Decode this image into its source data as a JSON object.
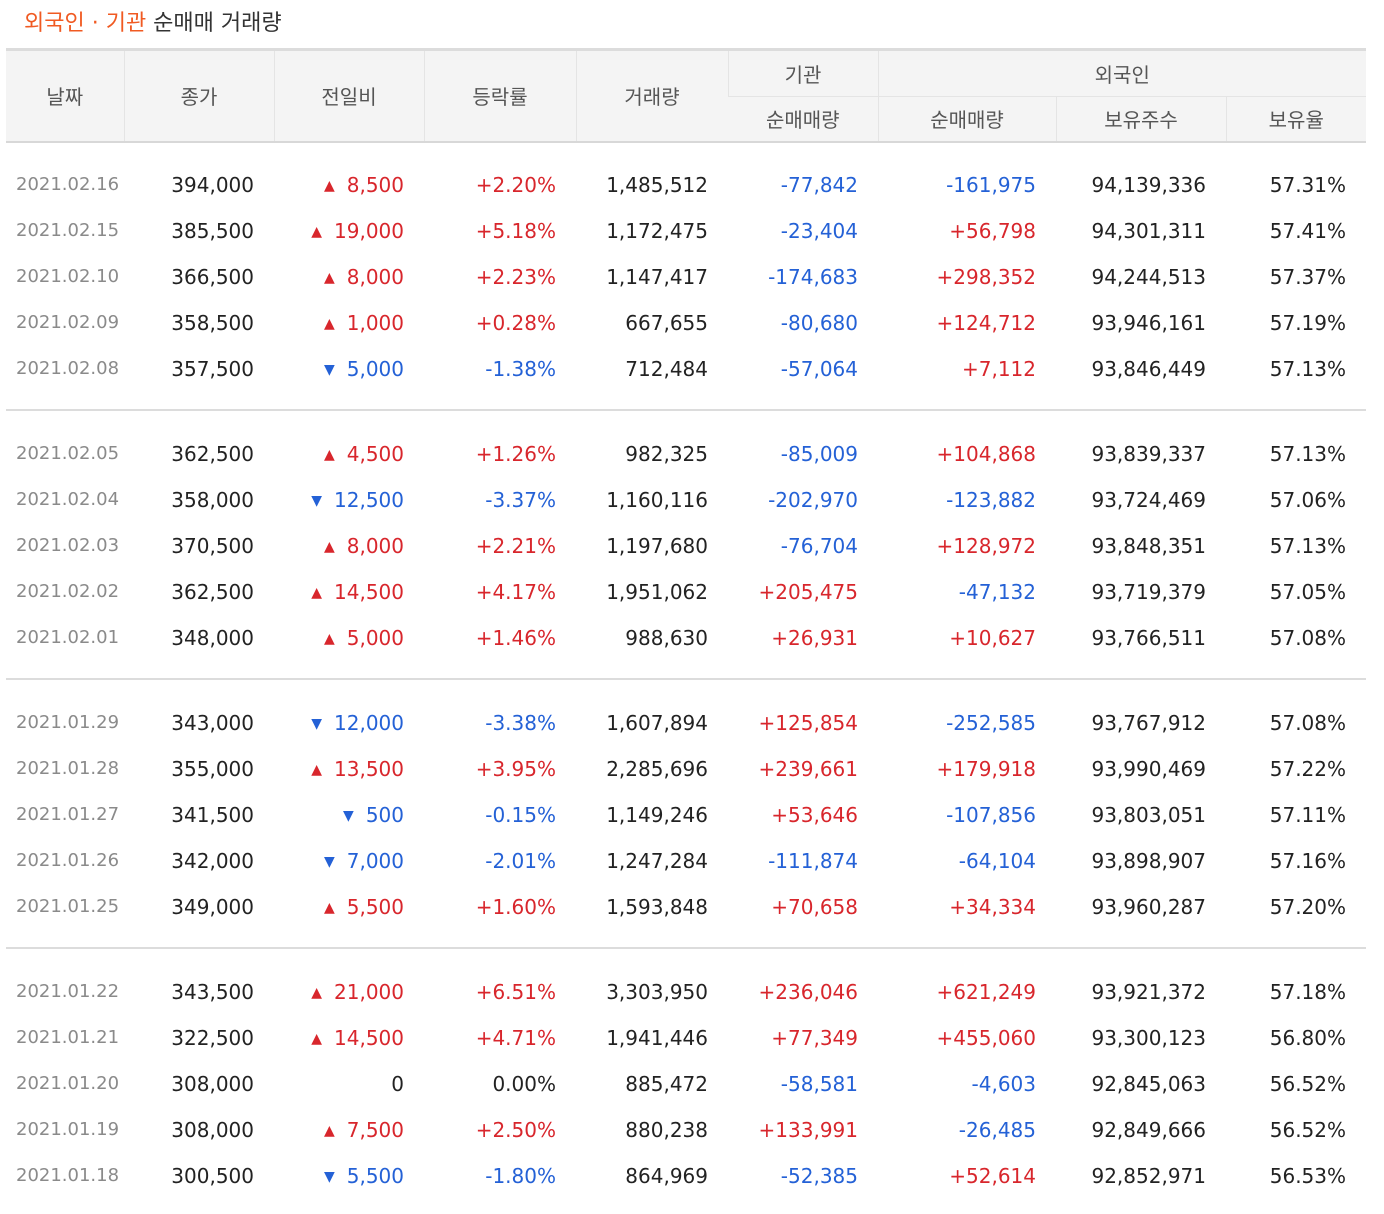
{
  "title": {
    "accent": "외국인 · 기관",
    "rest": " 순매매 거래량"
  },
  "headers": {
    "date": "날짜",
    "close": "종가",
    "change": "전일비",
    "rate": "등락률",
    "volume": "거래량",
    "inst_group": "기관",
    "inst_net": "순매매량",
    "foreign_group": "외국인",
    "foreign_net": "순매매량",
    "foreign_shares": "보유주수",
    "foreign_ratio": "보유율"
  },
  "colors": {
    "accent": "#f05a22",
    "up": "#d8262c",
    "down": "#2461d6"
  },
  "icons": {
    "up": "▲",
    "down": "▼"
  },
  "groups": [
    [
      {
        "date": "2021.02.16",
        "close": "394,000",
        "dir": "up",
        "change": "8,500",
        "rate": "+2.20%",
        "volume": "1,485,512",
        "inst": "-77,842",
        "foreign": "-161,975",
        "shares": "94,139,336",
        "ratio": "57.31%"
      },
      {
        "date": "2021.02.15",
        "close": "385,500",
        "dir": "up",
        "change": "19,000",
        "rate": "+5.18%",
        "volume": "1,172,475",
        "inst": "-23,404",
        "foreign": "+56,798",
        "shares": "94,301,311",
        "ratio": "57.41%"
      },
      {
        "date": "2021.02.10",
        "close": "366,500",
        "dir": "up",
        "change": "8,000",
        "rate": "+2.23%",
        "volume": "1,147,417",
        "inst": "-174,683",
        "foreign": "+298,352",
        "shares": "94,244,513",
        "ratio": "57.37%"
      },
      {
        "date": "2021.02.09",
        "close": "358,500",
        "dir": "up",
        "change": "1,000",
        "rate": "+0.28%",
        "volume": "667,655",
        "inst": "-80,680",
        "foreign": "+124,712",
        "shares": "93,946,161",
        "ratio": "57.19%"
      },
      {
        "date": "2021.02.08",
        "close": "357,500",
        "dir": "down",
        "change": "5,000",
        "rate": "-1.38%",
        "volume": "712,484",
        "inst": "-57,064",
        "foreign": "+7,112",
        "shares": "93,846,449",
        "ratio": "57.13%"
      }
    ],
    [
      {
        "date": "2021.02.05",
        "close": "362,500",
        "dir": "up",
        "change": "4,500",
        "rate": "+1.26%",
        "volume": "982,325",
        "inst": "-85,009",
        "foreign": "+104,868",
        "shares": "93,839,337",
        "ratio": "57.13%"
      },
      {
        "date": "2021.02.04",
        "close": "358,000",
        "dir": "down",
        "change": "12,500",
        "rate": "-3.37%",
        "volume": "1,160,116",
        "inst": "-202,970",
        "foreign": "-123,882",
        "shares": "93,724,469",
        "ratio": "57.06%"
      },
      {
        "date": "2021.02.03",
        "close": "370,500",
        "dir": "up",
        "change": "8,000",
        "rate": "+2.21%",
        "volume": "1,197,680",
        "inst": "-76,704",
        "foreign": "+128,972",
        "shares": "93,848,351",
        "ratio": "57.13%"
      },
      {
        "date": "2021.02.02",
        "close": "362,500",
        "dir": "up",
        "change": "14,500",
        "rate": "+4.17%",
        "volume": "1,951,062",
        "inst": "+205,475",
        "foreign": "-47,132",
        "shares": "93,719,379",
        "ratio": "57.05%"
      },
      {
        "date": "2021.02.01",
        "close": "348,000",
        "dir": "up",
        "change": "5,000",
        "rate": "+1.46%",
        "volume": "988,630",
        "inst": "+26,931",
        "foreign": "+10,627",
        "shares": "93,766,511",
        "ratio": "57.08%"
      }
    ],
    [
      {
        "date": "2021.01.29",
        "close": "343,000",
        "dir": "down",
        "change": "12,000",
        "rate": "-3.38%",
        "volume": "1,607,894",
        "inst": "+125,854",
        "foreign": "-252,585",
        "shares": "93,767,912",
        "ratio": "57.08%"
      },
      {
        "date": "2021.01.28",
        "close": "355,000",
        "dir": "up",
        "change": "13,500",
        "rate": "+3.95%",
        "volume": "2,285,696",
        "inst": "+239,661",
        "foreign": "+179,918",
        "shares": "93,990,469",
        "ratio": "57.22%"
      },
      {
        "date": "2021.01.27",
        "close": "341,500",
        "dir": "down",
        "change": "500",
        "rate": "-0.15%",
        "volume": "1,149,246",
        "inst": "+53,646",
        "foreign": "-107,856",
        "shares": "93,803,051",
        "ratio": "57.11%"
      },
      {
        "date": "2021.01.26",
        "close": "342,000",
        "dir": "down",
        "change": "7,000",
        "rate": "-2.01%",
        "volume": "1,247,284",
        "inst": "-111,874",
        "foreign": "-64,104",
        "shares": "93,898,907",
        "ratio": "57.16%"
      },
      {
        "date": "2021.01.25",
        "close": "349,000",
        "dir": "up",
        "change": "5,500",
        "rate": "+1.60%",
        "volume": "1,593,848",
        "inst": "+70,658",
        "foreign": "+34,334",
        "shares": "93,960,287",
        "ratio": "57.20%"
      }
    ],
    [
      {
        "date": "2021.01.22",
        "close": "343,500",
        "dir": "up",
        "change": "21,000",
        "rate": "+6.51%",
        "volume": "3,303,950",
        "inst": "+236,046",
        "foreign": "+621,249",
        "shares": "93,921,372",
        "ratio": "57.18%"
      },
      {
        "date": "2021.01.21",
        "close": "322,500",
        "dir": "up",
        "change": "14,500",
        "rate": "+4.71%",
        "volume": "1,941,446",
        "inst": "+77,349",
        "foreign": "+455,060",
        "shares": "93,300,123",
        "ratio": "56.80%"
      },
      {
        "date": "2021.01.20",
        "close": "308,000",
        "dir": "flat",
        "change": "0",
        "rate": "0.00%",
        "volume": "885,472",
        "inst": "-58,581",
        "foreign": "-4,603",
        "shares": "92,845,063",
        "ratio": "56.52%"
      },
      {
        "date": "2021.01.19",
        "close": "308,000",
        "dir": "up",
        "change": "7,500",
        "rate": "+2.50%",
        "volume": "880,238",
        "inst": "+133,991",
        "foreign": "-26,485",
        "shares": "92,849,666",
        "ratio": "56.52%"
      },
      {
        "date": "2021.01.18",
        "close": "300,500",
        "dir": "down",
        "change": "5,500",
        "rate": "-1.80%",
        "volume": "864,969",
        "inst": "-52,385",
        "foreign": "+52,614",
        "shares": "92,852,971",
        "ratio": "56.53%"
      }
    ]
  ]
}
